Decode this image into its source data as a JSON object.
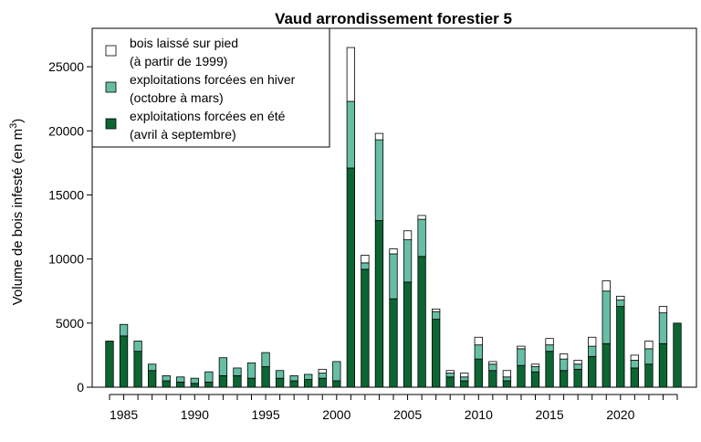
{
  "chart_data": {
    "type": "bar",
    "stacked": true,
    "title": "Vaud arrondissement forestier 5",
    "ylabel": "Volume de bois infesté (en m",
    "ylabel_superscript": "3",
    "ylabel_suffix": ")",
    "xlabel": "",
    "ylim": [
      0,
      28000
    ],
    "yticks": [
      0,
      5000,
      10000,
      15000,
      20000,
      25000
    ],
    "xticks": [
      1985,
      1990,
      1995,
      2000,
      2005,
      2010,
      2015,
      2020
    ],
    "x": [
      1984,
      1985,
      1986,
      1987,
      1988,
      1989,
      1990,
      1991,
      1992,
      1993,
      1994,
      1995,
      1996,
      1997,
      1998,
      1999,
      2000,
      2001,
      2002,
      2003,
      2004,
      2005,
      2006,
      2007,
      2008,
      2009,
      2010,
      2011,
      2012,
      2013,
      2014,
      2015,
      2016,
      2017,
      2018,
      2019,
      2020,
      2021,
      2022,
      2023,
      2024
    ],
    "legend_position": "top-left",
    "series": [
      {
        "name": "exploitations forcées en été\n(avril à septembre)",
        "color": "#0b6633",
        "values": [
          3600,
          4000,
          2800,
          1300,
          500,
          400,
          300,
          400,
          900,
          900,
          700,
          1600,
          700,
          500,
          600,
          700,
          500,
          17100,
          9200,
          13000,
          6900,
          8200,
          10200,
          5300,
          800,
          500,
          2200,
          1300,
          500,
          1700,
          1200,
          2800,
          1300,
          1400,
          2400,
          3400,
          6300,
          1500,
          1800,
          3400,
          5000
        ]
      },
      {
        "name": "exploitations forcées en hiver\n(octobre à mars)",
        "color": "#66bfa5",
        "values": [
          0,
          900,
          800,
          500,
          400,
          400,
          400,
          800,
          1400,
          600,
          1200,
          1100,
          600,
          400,
          400,
          400,
          1500,
          5200,
          500,
          6300,
          3500,
          3300,
          2900,
          600,
          300,
          300,
          1100,
          500,
          300,
          1300,
          400,
          500,
          900,
          400,
          800,
          4100,
          500,
          600,
          1200,
          2400,
          0
        ]
      },
      {
        "name": "bois laissé sur pied\n(à partir de 1999)",
        "color": "#ffffff",
        "values": [
          0,
          0,
          0,
          0,
          0,
          0,
          0,
          0,
          0,
          0,
          0,
          0,
          0,
          0,
          0,
          300,
          0,
          4200,
          600,
          500,
          400,
          700,
          300,
          200,
          200,
          300,
          600,
          200,
          500,
          200,
          200,
          500,
          400,
          300,
          700,
          800,
          300,
          400,
          600,
          500,
          0
        ]
      }
    ],
    "legend_order": [
      2,
      1,
      0
    ]
  }
}
